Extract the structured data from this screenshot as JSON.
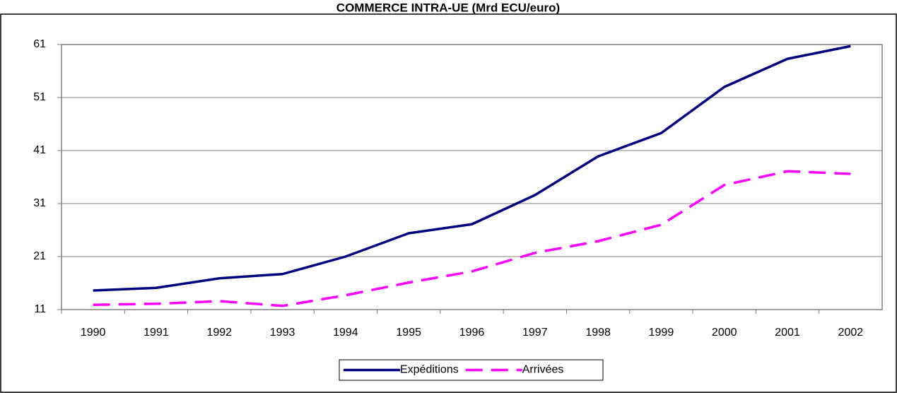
{
  "chart_data": {
    "type": "line",
    "title": "COMMERCE INTRA-UE (Mrd ECU/euro)",
    "categories": [
      "1990",
      "1991",
      "1992",
      "1993",
      "1994",
      "1995",
      "1996",
      "1997",
      "1998",
      "1999",
      "2000",
      "2001",
      "2002"
    ],
    "series": [
      {
        "name": "Expéditions",
        "color": "#000080",
        "dashed": false,
        "values": [
          14.6,
          15.1,
          16.9,
          17.7,
          21,
          25.4,
          27.1,
          32.6,
          39.9,
          44.3,
          53,
          58.3,
          60.7
        ]
      },
      {
        "name": "Arrivées",
        "color": "#ff00ff",
        "dashed": true,
        "values": [
          11.9,
          12.1,
          12.6,
          11.7,
          13.7,
          16.1,
          18.2,
          21.7,
          23.9,
          27,
          34.5,
          37.1,
          36.6
        ]
      }
    ],
    "ylim": [
      11,
      61
    ],
    "yticks": [
      11,
      21,
      31,
      41,
      51,
      61
    ],
    "grid": true,
    "legend": "bottom"
  }
}
